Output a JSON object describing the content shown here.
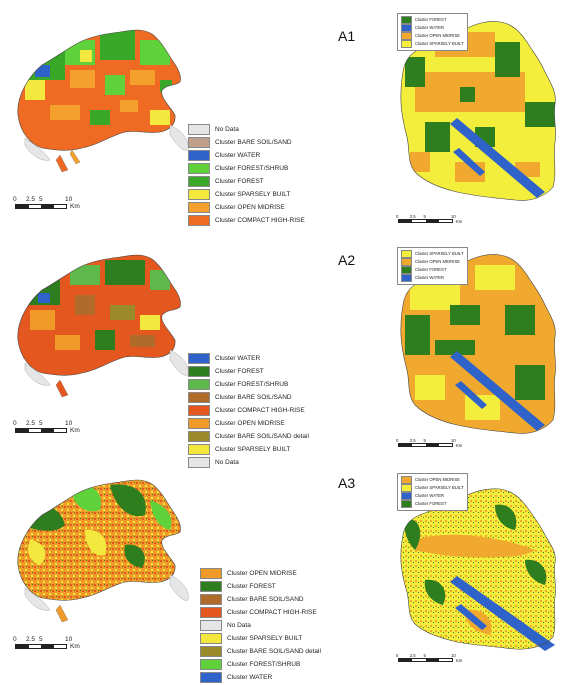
{
  "panels": [
    {
      "label": "A1",
      "left_legend": [
        {
          "label": "No Data",
          "color": "#e6e6e6"
        },
        {
          "label": "Cluster BARE SOIL/SAND",
          "color": "#bfa08a"
        },
        {
          "label": "Cluster WATER",
          "color": "#2f63c9"
        },
        {
          "label": "Cluster FOREST/SHRUB",
          "color": "#5fd13a"
        },
        {
          "label": "Cluster FOREST",
          "color": "#39a829"
        },
        {
          "label": "Cluster SPARSELY BUILT",
          "color": "#f3e83d"
        },
        {
          "label": "Cluster OPEN MIDRISE",
          "color": "#f3a12c"
        },
        {
          "label": "Cluster COMPACT HIGH-RISE",
          "color": "#ef6a22"
        }
      ],
      "left_scale": {
        "ticks": [
          "0",
          "2.5",
          "5",
          "10"
        ],
        "unit": "Km"
      },
      "right_legend": [
        {
          "label": "Cluster FOREST",
          "color": "#2e7d1f"
        },
        {
          "label": "Cluster WATER",
          "color": "#2f63c9"
        },
        {
          "label": "Cluster OPEN MIDRISE",
          "color": "#f0a92e"
        },
        {
          "label": "Cluster SPARSELY BUILT",
          "color": "#f3ee3c"
        }
      ],
      "right_scale": {
        "ticks": [
          "0",
          "2.5",
          "5",
          "10"
        ],
        "unit": "Km"
      }
    },
    {
      "label": "A2",
      "left_legend": [
        {
          "label": "Cluster WATER",
          "color": "#2f63c9"
        },
        {
          "label": "Cluster FOREST",
          "color": "#2e7d1f"
        },
        {
          "label": "Cluster FOREST/SHRUB",
          "color": "#5fb84a"
        },
        {
          "label": "Cluster BARE SOIL/SAND",
          "color": "#b06a2a"
        },
        {
          "label": "Cluster COMPACT HIGH-RISE",
          "color": "#e4571f"
        },
        {
          "label": "Cluster OPEN MIDRISE",
          "color": "#f09a2a"
        },
        {
          "label": "Cluster BARE SOIL/SAND detail",
          "color": "#9a8a2a"
        },
        {
          "label": "Cluster SPARSELY BUILT",
          "color": "#f3e83d"
        },
        {
          "label": "No Data",
          "color": "#e6e6e6"
        }
      ],
      "left_scale": {
        "ticks": [
          "0",
          "2.5",
          "5",
          "10"
        ],
        "unit": "Km"
      },
      "right_legend": [
        {
          "label": "Cluster SPARSELY BUILT",
          "color": "#f3ee3c"
        },
        {
          "label": "Cluster OPEN MIDRISE",
          "color": "#f0a92e"
        },
        {
          "label": "Cluster FOREST",
          "color": "#2e7d1f"
        },
        {
          "label": "Cluster WATER",
          "color": "#2f63c9"
        }
      ],
      "right_scale": {
        "ticks": [
          "0",
          "2.5",
          "5",
          "10"
        ],
        "unit": "Km"
      }
    },
    {
      "label": "A3",
      "left_legend": [
        {
          "label": "Cluster OPEN MIDRISE",
          "color": "#f09a2a"
        },
        {
          "label": "Cluster FOREST",
          "color": "#2e7d1f"
        },
        {
          "label": "Cluster BARE SOIL/SAND",
          "color": "#b06a2a"
        },
        {
          "label": "Cluster COMPACT HIGH-RISE",
          "color": "#e4571f"
        },
        {
          "label": "No Data",
          "color": "#e6e6e6"
        },
        {
          "label": "Cluster SPARSELY BUILT",
          "color": "#f3e83d"
        },
        {
          "label": "Cluster BARE SOIL/SAND detail",
          "color": "#9a8a2a"
        },
        {
          "label": "Cluster FOREST/SHRUB",
          "color": "#5fd13a"
        },
        {
          "label": "Cluster WATER",
          "color": "#2f63c9"
        }
      ],
      "left_scale": {
        "ticks": [
          "0",
          "2.5",
          "5",
          "10"
        ],
        "unit": "Km"
      },
      "right_legend": [
        {
          "label": "Cluster OPEN MIDRISE",
          "color": "#f0a92e"
        },
        {
          "label": "Cluster SPARSELY BUILT",
          "color": "#f3ee3c"
        },
        {
          "label": "Cluster WATER",
          "color": "#2f63c9"
        },
        {
          "label": "Cluster FOREST",
          "color": "#2e7d1f"
        }
      ],
      "right_scale": {
        "ticks": [
          "0",
          "2.5",
          "5",
          "10"
        ],
        "unit": "Km"
      }
    }
  ]
}
